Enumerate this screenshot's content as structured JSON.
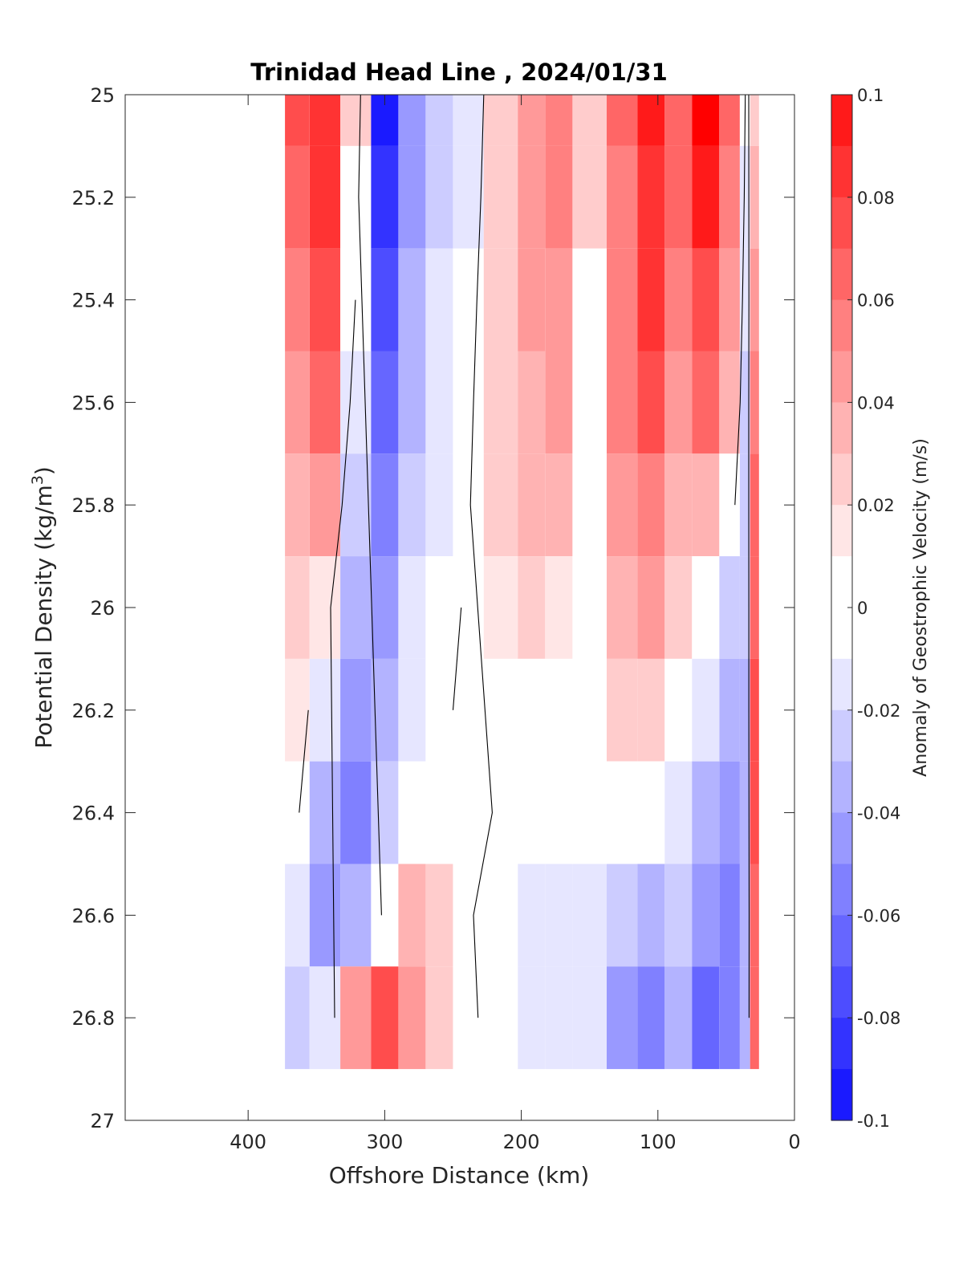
{
  "chart_data": {
    "type": "filled-contour",
    "title": "Trinidad Head Line , 2024/01/31",
    "xlabel": "Offshore Distance (km)",
    "ylabel": "Potential Density",
    "ylabel_unit": "(kg/m",
    "ylabel_unit_sup": "3",
    "ylabel_unit_close": ")",
    "xlim": [
      490,
      0
    ],
    "ylim": [
      25,
      27
    ],
    "y_reversed": true,
    "x_reversed": true,
    "x_ticks": [
      400,
      300,
      200,
      100,
      0
    ],
    "x_tick_labels": [
      "400",
      "300",
      "200",
      "100",
      "0"
    ],
    "y_ticks": [
      25,
      25.2,
      25.4,
      25.6,
      25.8,
      26,
      26.2,
      26.4,
      26.6,
      26.8,
      27
    ],
    "y_tick_labels": [
      "25",
      "25.2",
      "25.4",
      "25.6",
      "25.8",
      "26",
      "26.2",
      "26.4",
      "26.6",
      "26.8",
      "27"
    ],
    "colorbar": {
      "label": "Anomaly of Geostrophic Velocity (m/s)",
      "clim": [
        -0.1,
        0.1
      ],
      "level_step": 0.01,
      "ticks": [
        0.1,
        0.08,
        0.06,
        0.04,
        0.02,
        0,
        -0.02,
        -0.04,
        -0.06,
        -0.08,
        -0.1
      ],
      "tick_labels": [
        "0.1",
        "0.08",
        "0.06",
        "0.04",
        "0.02",
        "0",
        "-0.02",
        "-0.04",
        "-0.06",
        "-0.08",
        "-0.1"
      ],
      "colors_high_to_low": [
        "#ff0000",
        "#ff1a1a",
        "#ff3333",
        "#ff4d4d",
        "#ff6666",
        "#ff8080",
        "#ff9999",
        "#ffb3b3",
        "#ffcccc",
        "#ffe6e6",
        "#ffffff",
        "#e6e6ff",
        "#ccccff",
        "#b3b3ff",
        "#9999ff",
        "#8080ff",
        "#6666ff",
        "#4d4dff",
        "#3333ff",
        "#1a1aff",
        "#0000ff"
      ]
    },
    "zero_contour_color": "#000000",
    "grid": false,
    "series": [
      {
        "x": 365,
        "values": [
          0.064,
          0.058,
          0.05,
          0.04,
          0.028,
          0.018,
          0.01,
          0.004,
          -0.014,
          -0.022
        ]
      },
      {
        "x": 345,
        "values": [
          0.078,
          0.074,
          0.066,
          0.052,
          0.032,
          0.01,
          -0.012,
          -0.03,
          -0.04,
          -0.016
        ]
      },
      {
        "x": 320,
        "values": [
          0.012,
          0.004,
          -0.004,
          -0.014,
          -0.026,
          -0.036,
          -0.044,
          -0.052,
          -0.03,
          0.032
        ]
      },
      {
        "x": 300,
        "values": [
          -0.092,
          -0.086,
          -0.074,
          -0.062,
          -0.05,
          -0.042,
          -0.032,
          -0.022,
          0.004,
          0.062
        ]
      },
      {
        "x": 280,
        "values": [
          -0.048,
          -0.044,
          -0.038,
          -0.03,
          -0.024,
          -0.018,
          -0.012,
          -0.006,
          0.022,
          0.036
        ]
      },
      {
        "x": 260,
        "values": [
          -0.024,
          -0.02,
          -0.016,
          -0.012,
          -0.012,
          -0.008,
          -0.004,
          0.002,
          0.012,
          0.018
        ]
      },
      {
        "x": 240,
        "values": [
          -0.012,
          -0.01,
          -0.006,
          -0.004,
          -0.002,
          0.002,
          0.004,
          0.006,
          0.002,
          0.004
        ]
      },
      {
        "x": 215,
        "values": [
          0.012,
          0.014,
          0.014,
          0.016,
          0.016,
          0.01,
          0.004,
          -0.002,
          -0.008,
          -0.008
        ]
      },
      {
        "x": 190,
        "values": [
          0.036,
          0.038,
          0.034,
          0.028,
          0.022,
          0.012,
          0.006,
          -0.004,
          -0.01,
          -0.012
        ]
      },
      {
        "x": 175,
        "values": [
          0.044,
          0.046,
          0.04,
          0.032,
          0.022,
          0.01,
          0.004,
          -0.004,
          -0.01,
          -0.014
        ]
      },
      {
        "x": 150,
        "values": [
          0.018,
          0.014,
          0.008,
          0.006,
          0.004,
          0.004,
          0.002,
          -0.002,
          -0.01,
          -0.018
        ]
      },
      {
        "x": 125,
        "values": [
          0.054,
          0.05,
          0.048,
          0.044,
          0.038,
          0.03,
          0.018,
          -0.002,
          -0.028,
          -0.044
        ]
      },
      {
        "x": 105,
        "values": [
          0.084,
          0.08,
          0.072,
          0.062,
          0.048,
          0.032,
          0.018,
          -0.006,
          -0.034,
          -0.052
        ]
      },
      {
        "x": 85,
        "values": [
          0.056,
          0.052,
          0.046,
          0.038,
          0.028,
          0.012,
          -0.006,
          -0.018,
          -0.028,
          -0.036
        ]
      },
      {
        "x": 65,
        "values": [
          0.094,
          0.086,
          0.07,
          0.052,
          0.03,
          0.006,
          -0.014,
          -0.03,
          -0.044,
          -0.062
        ]
      },
      {
        "x": 45,
        "values": [
          0.052,
          0.046,
          0.036,
          0.022,
          0.004,
          -0.022,
          -0.036,
          -0.044,
          -0.05,
          -0.056
        ]
      },
      {
        "x": 35,
        "values": [
          -0.006,
          -0.01,
          -0.016,
          -0.02,
          -0.024,
          -0.028,
          -0.03,
          -0.032,
          -0.034,
          -0.03
        ]
      },
      {
        "x": 30,
        "values": [
          0.014,
          0.022,
          0.034,
          0.046,
          0.056,
          0.06,
          0.064,
          0.064,
          0.06,
          0.056
        ]
      }
    ],
    "series_y": [
      25.0,
      25.2,
      25.4,
      25.6,
      25.8,
      26.0,
      26.2,
      26.4,
      26.6,
      26.8
    ]
  }
}
